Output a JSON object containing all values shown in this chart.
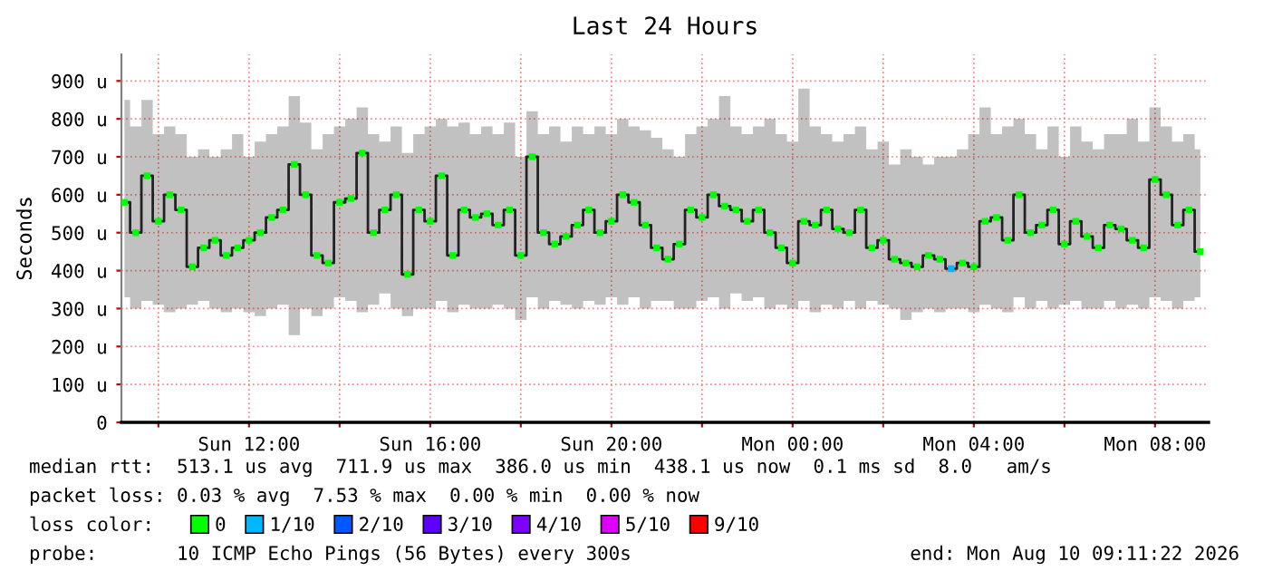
{
  "chart_data": {
    "type": "step",
    "title": "Last 24 Hours",
    "ylabel": "Seconds",
    "x": [
      "2026-08-09T09:15",
      "2026-08-09T09:30",
      "2026-08-09T09:45",
      "2026-08-09T10:00",
      "2026-08-09T10:15",
      "2026-08-09T10:30",
      "2026-08-09T10:45",
      "2026-08-09T11:00",
      "2026-08-09T11:15",
      "2026-08-09T11:30",
      "2026-08-09T11:45",
      "2026-08-09T12:00",
      "2026-08-09T12:15",
      "2026-08-09T12:30",
      "2026-08-09T12:45",
      "2026-08-09T13:00",
      "2026-08-09T13:15",
      "2026-08-09T13:30",
      "2026-08-09T13:45",
      "2026-08-09T14:00",
      "2026-08-09T14:15",
      "2026-08-09T14:30",
      "2026-08-09T14:45",
      "2026-08-09T15:00",
      "2026-08-09T15:15",
      "2026-08-09T15:30",
      "2026-08-09T15:45",
      "2026-08-09T16:00",
      "2026-08-09T16:15",
      "2026-08-09T16:30",
      "2026-08-09T16:45",
      "2026-08-09T17:00",
      "2026-08-09T17:15",
      "2026-08-09T17:30",
      "2026-08-09T17:45",
      "2026-08-09T18:00",
      "2026-08-09T18:15",
      "2026-08-09T18:30",
      "2026-08-09T18:45",
      "2026-08-09T19:00",
      "2026-08-09T19:15",
      "2026-08-09T19:30",
      "2026-08-09T19:45",
      "2026-08-09T20:00",
      "2026-08-09T20:15",
      "2026-08-09T20:30",
      "2026-08-09T20:45",
      "2026-08-09T21:00",
      "2026-08-09T21:15",
      "2026-08-09T21:30",
      "2026-08-09T21:45",
      "2026-08-09T22:00",
      "2026-08-09T22:15",
      "2026-08-09T22:30",
      "2026-08-09T22:45",
      "2026-08-09T23:00",
      "2026-08-09T23:15",
      "2026-08-09T23:30",
      "2026-08-09T23:45",
      "2026-08-10T00:00",
      "2026-08-10T00:15",
      "2026-08-10T00:30",
      "2026-08-10T00:45",
      "2026-08-10T01:00",
      "2026-08-10T01:15",
      "2026-08-10T01:30",
      "2026-08-10T01:45",
      "2026-08-10T02:00",
      "2026-08-10T02:15",
      "2026-08-10T02:30",
      "2026-08-10T02:45",
      "2026-08-10T03:00",
      "2026-08-10T03:15",
      "2026-08-10T03:30",
      "2026-08-10T03:45",
      "2026-08-10T04:00",
      "2026-08-10T04:15",
      "2026-08-10T04:30",
      "2026-08-10T04:45",
      "2026-08-10T05:00",
      "2026-08-10T05:15",
      "2026-08-10T05:30",
      "2026-08-10T05:45",
      "2026-08-10T06:00",
      "2026-08-10T06:15",
      "2026-08-10T06:30",
      "2026-08-10T06:45",
      "2026-08-10T07:00",
      "2026-08-10T07:15",
      "2026-08-10T07:30",
      "2026-08-10T07:45",
      "2026-08-10T08:00",
      "2026-08-10T08:15",
      "2026-08-10T08:30",
      "2026-08-10T08:45",
      "2026-08-10T09:00"
    ],
    "series": [
      {
        "color": "#222222",
        "values": [
          580,
          500,
          650,
          530,
          600,
          560,
          410,
          460,
          480,
          440,
          460,
          480,
          500,
          540,
          560,
          680,
          600,
          440,
          420,
          580,
          590,
          710,
          500,
          560,
          600,
          390,
          560,
          530,
          650,
          440,
          560,
          540,
          550,
          520,
          560,
          440,
          700,
          500,
          470,
          490,
          520,
          560,
          500,
          530,
          600,
          580,
          520,
          460,
          430,
          470,
          560,
          540,
          600,
          570,
          560,
          530,
          560,
          500,
          460,
          420,
          530,
          520,
          560,
          510,
          500,
          560,
          460,
          480,
          430,
          420,
          410,
          440,
          430,
          405,
          420,
          410,
          530,
          540,
          480,
          600,
          500,
          520,
          560,
          470,
          530,
          490,
          460,
          520,
          510,
          480,
          460,
          640,
          600,
          520,
          560,
          450
        ],
        "lower": [
          330,
          300,
          320,
          310,
          290,
          300,
          310,
          320,
          300,
          290,
          300,
          290,
          280,
          300,
          310,
          230,
          300,
          280,
          300,
          330,
          320,
          290,
          310,
          340,
          300,
          280,
          300,
          300,
          320,
          290,
          310,
          300,
          300,
          310,
          300,
          270,
          330,
          300,
          320,
          310,
          300,
          320,
          310,
          330,
          310,
          330,
          300,
          320,
          320,
          300,
          300,
          320,
          330,
          300,
          340,
          320,
          330,
          300,
          310,
          300,
          320,
          290,
          310,
          300,
          320,
          300,
          320,
          310,
          300,
          270,
          290,
          300,
          290,
          300,
          300,
          290,
          310,
          300,
          290,
          330,
          300,
          320,
          300,
          310,
          320,
          300,
          300,
          320,
          300,
          310,
          300,
          330,
          320,
          300,
          320,
          330
        ],
        "upper": [
          850,
          780,
          850,
          760,
          780,
          760,
          700,
          720,
          700,
          720,
          760,
          700,
          740,
          760,
          780,
          860,
          790,
          720,
          760,
          780,
          800,
          830,
          760,
          740,
          780,
          710,
          760,
          780,
          800,
          780,
          790,
          760,
          780,
          760,
          790,
          700,
          820,
          760,
          780,
          740,
          780,
          760,
          780,
          760,
          800,
          780,
          770,
          750,
          720,
          700,
          760,
          780,
          800,
          860,
          780,
          760,
          780,
          800,
          760,
          740,
          880,
          780,
          760,
          740,
          760,
          780,
          720,
          740,
          680,
          720,
          700,
          680,
          700,
          700,
          720,
          760,
          830,
          760,
          780,
          800,
          760,
          720,
          780,
          700,
          780,
          740,
          720,
          760,
          760,
          800,
          740,
          830,
          780,
          740,
          760,
          720
        ]
      },
      {
        "type": "scatter",
        "name": "0",
        "color": "#00ff00",
        "marker": "square",
        "values": [
          580,
          500,
          650,
          530,
          600,
          560,
          410,
          460,
          480,
          440,
          460,
          480,
          500,
          540,
          560,
          680,
          600,
          440,
          420,
          580,
          590,
          710,
          500,
          560,
          600,
          390,
          560,
          530,
          650,
          440,
          560,
          540,
          550,
          520,
          560,
          440,
          700,
          500,
          470,
          490,
          520,
          560,
          500,
          530,
          600,
          580,
          520,
          460,
          430,
          470,
          560,
          540,
          600,
          570,
          560,
          530,
          560,
          500,
          460,
          420,
          530,
          520,
          560,
          510,
          500,
          560,
          460,
          480,
          430,
          420,
          410,
          440,
          430,
          null,
          420,
          410,
          530,
          540,
          480,
          600,
          500,
          520,
          560,
          470,
          530,
          490,
          460,
          520,
          510,
          480,
          460,
          640,
          600,
          520,
          560,
          450
        ]
      },
      {
        "type": "scatter",
        "name": "1/10",
        "color": "#00b8ff",
        "marker": "square",
        "values": [
          null,
          null,
          null,
          null,
          null,
          null,
          null,
          null,
          null,
          null,
          null,
          null,
          null,
          null,
          null,
          null,
          null,
          null,
          null,
          null,
          null,
          null,
          null,
          null,
          null,
          null,
          null,
          null,
          null,
          null,
          null,
          null,
          null,
          null,
          null,
          null,
          null,
          null,
          null,
          null,
          null,
          null,
          null,
          null,
          null,
          null,
          null,
          null,
          null,
          null,
          null,
          null,
          null,
          null,
          null,
          null,
          null,
          null,
          null,
          null,
          null,
          null,
          null,
          null,
          null,
          null,
          null,
          null,
          null,
          null,
          null,
          null,
          null,
          405,
          null,
          null,
          null,
          null,
          null,
          null,
          null,
          null,
          null,
          null,
          null,
          null,
          null,
          null,
          null,
          null,
          null,
          null,
          null,
          null,
          null,
          null
        ]
      },
      {
        "type": "scatter",
        "name": "2/10",
        "color": "#0059ff",
        "marker": "square",
        "values": [
          null,
          null,
          null,
          null,
          null,
          null,
          null,
          null,
          null,
          null,
          null,
          null,
          null,
          null,
          null,
          null,
          null,
          null,
          null,
          null,
          null,
          null,
          null,
          null,
          null,
          null,
          null,
          null,
          null,
          null,
          null,
          null,
          null,
          null,
          null,
          null,
          null,
          null,
          null,
          null,
          null,
          null,
          null,
          null,
          null,
          null,
          null,
          null,
          null,
          null,
          null,
          null,
          null,
          null,
          null,
          null,
          null,
          null,
          null,
          null,
          null,
          null,
          null,
          null,
          null,
          null,
          null,
          null,
          null,
          null,
          null,
          null,
          null,
          null,
          null,
          null,
          null,
          null,
          null,
          null,
          null,
          null,
          null,
          null,
          null,
          null,
          null,
          null,
          null,
          null,
          null,
          null,
          null,
          null,
          null,
          null
        ]
      },
      {
        "type": "scatter",
        "name": "3/10",
        "color": "#5e00ff",
        "marker": "square",
        "values": [
          null,
          null,
          null,
          null,
          null,
          null,
          null,
          null,
          null,
          null,
          null,
          null,
          null,
          null,
          null,
          null,
          null,
          null,
          null,
          null,
          null,
          null,
          null,
          null,
          null,
          null,
          null,
          null,
          null,
          null,
          null,
          null,
          null,
          null,
          null,
          null,
          null,
          null,
          null,
          null,
          null,
          null,
          null,
          null,
          null,
          null,
          null,
          null,
          null,
          null,
          null,
          null,
          null,
          null,
          null,
          null,
          null,
          null,
          null,
          null,
          null,
          null,
          null,
          null,
          null,
          null,
          null,
          null,
          null,
          null,
          null,
          null,
          null,
          null,
          null,
          null,
          null,
          null,
          null,
          null,
          null,
          null,
          null,
          null,
          null,
          null,
          null,
          null,
          null,
          null,
          null,
          null,
          null,
          null,
          null,
          null
        ]
      },
      {
        "type": "scatter",
        "name": "4/10",
        "color": "#7e00ff",
        "marker": "square",
        "values": [
          null,
          null,
          null,
          null,
          null,
          null,
          null,
          null,
          null,
          null,
          null,
          null,
          null,
          null,
          null,
          null,
          null,
          null,
          null,
          null,
          null,
          null,
          null,
          null,
          null,
          null,
          null,
          null,
          null,
          null,
          null,
          null,
          null,
          null,
          null,
          null,
          null,
          null,
          null,
          null,
          null,
          null,
          null,
          null,
          null,
          null,
          null,
          null,
          null,
          null,
          null,
          null,
          null,
          null,
          null,
          null,
          null,
          null,
          null,
          null,
          null,
          null,
          null,
          null,
          null,
          null,
          null,
          null,
          null,
          null,
          null,
          null,
          null,
          null,
          null,
          null,
          null,
          null,
          null,
          null,
          null,
          null,
          null,
          null,
          null,
          null,
          null,
          null,
          null,
          null,
          null,
          null,
          null,
          null,
          null,
          null
        ]
      },
      {
        "type": "scatter",
        "name": "5/10",
        "color": "#dd00ff",
        "marker": "square",
        "values": [
          null,
          null,
          null,
          null,
          null,
          null,
          null,
          null,
          null,
          null,
          null,
          null,
          null,
          null,
          null,
          null,
          null,
          null,
          null,
          null,
          null,
          null,
          null,
          null,
          null,
          null,
          null,
          null,
          null,
          null,
          null,
          null,
          null,
          null,
          null,
          null,
          null,
          null,
          null,
          null,
          null,
          null,
          null,
          null,
          null,
          null,
          null,
          null,
          null,
          null,
          null,
          null,
          null,
          null,
          null,
          null,
          null,
          null,
          null,
          null,
          null,
          null,
          null,
          null,
          null,
          null,
          null,
          null,
          null,
          null,
          null,
          null,
          null,
          null,
          null,
          null,
          null,
          null,
          null,
          null,
          null,
          null,
          null,
          null,
          null,
          null,
          null,
          null,
          null,
          null,
          null,
          null,
          null,
          null,
          null,
          null
        ]
      },
      {
        "type": "scatter",
        "name": "9/10",
        "color": "#ff0000",
        "marker": "square",
        "values": [
          null,
          null,
          null,
          null,
          null,
          null,
          null,
          null,
          null,
          null,
          null,
          null,
          null,
          null,
          null,
          null,
          null,
          null,
          null,
          null,
          null,
          null,
          null,
          null,
          null,
          null,
          null,
          null,
          null,
          null,
          null,
          null,
          null,
          null,
          null,
          null,
          null,
          null,
          null,
          null,
          null,
          null,
          null,
          null,
          null,
          null,
          null,
          null,
          null,
          null,
          null,
          null,
          null,
          null,
          null,
          null,
          null,
          null,
          null,
          null,
          null,
          null,
          null,
          null,
          null,
          null,
          null,
          null,
          null,
          null,
          null,
          null,
          null,
          null,
          null,
          null,
          null,
          null,
          null,
          null,
          null,
          null,
          null,
          null,
          null,
          null,
          null,
          null,
          null,
          null,
          null,
          null,
          null,
          null,
          null,
          null
        ]
      }
    ],
    "xlim": [
      "2026-08-09T09:11",
      "2026-08-10T09:11"
    ],
    "xticks": [
      {
        "value": "2026-08-09T10:00",
        "label": null
      },
      {
        "value": "2026-08-09T12:00",
        "label": "Sun 12:00"
      },
      {
        "value": "2026-08-09T14:00",
        "label": null
      },
      {
        "value": "2026-08-09T16:00",
        "label": "Sun 16:00"
      },
      {
        "value": "2026-08-09T18:00",
        "label": null
      },
      {
        "value": "2026-08-09T20:00",
        "label": "Sun 20:00"
      },
      {
        "value": "2026-08-09T22:00",
        "label": null
      },
      {
        "value": "2026-08-10T00:00",
        "label": "Mon 00:00"
      },
      {
        "value": "2026-08-10T02:00",
        "label": null
      },
      {
        "value": "2026-08-10T04:00",
        "label": "Mon 04:00"
      },
      {
        "value": "2026-08-10T06:00",
        "label": null
      },
      {
        "value": "2026-08-10T08:00",
        "label": "Mon 08:00"
      }
    ],
    "ylim": [
      0,
      970
    ],
    "yticks": [
      0,
      {
        "value": 100,
        "label": "100 u"
      },
      {
        "value": 200,
        "label": "200 u"
      },
      {
        "value": 300,
        "label": "300 u"
      },
      {
        "value": 400,
        "label": "400 u"
      },
      {
        "value": 500,
        "label": "500 u"
      },
      {
        "value": 600,
        "label": "600 u"
      },
      {
        "value": 700,
        "label": "700 u"
      },
      {
        "value": 800,
        "label": "800 u"
      },
      {
        "value": 900,
        "label": "900 u"
      }
    ],
    "grid": true,
    "legend": "bottom",
    "legend_title": "loss color:",
    "annotations": [
      "median rtt:  513.1 us avg  711.9 us max  386.0 us min  438.1 us now  0.1 ms sd  8.0   am/s",
      "packet loss: 0.03 % avg  7.53 % max  0.00 % min  0.00 % now",
      "probe:       10 ICMP Echo Pings (56 Bytes) every 300s",
      "end: Mon Aug 10 09:11:22 2026"
    ]
  }
}
